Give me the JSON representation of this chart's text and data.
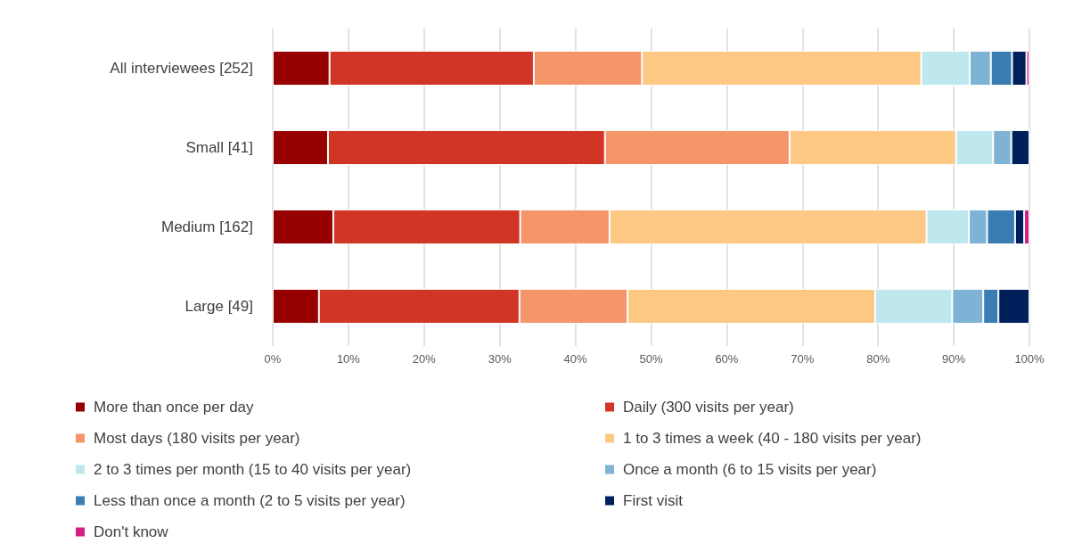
{
  "chart_data": {
    "type": "bar",
    "orientation": "horizontal",
    "stacked": true,
    "categories": [
      "All interviewees [252]",
      "Small [41]",
      "Medium [162]",
      "Large [49]"
    ],
    "series": [
      {
        "name": "More than once per day",
        "color": "#960000",
        "values": [
          7.5,
          7.3,
          8.0,
          6.1
        ]
      },
      {
        "name": "Daily (300 visits per year)",
        "color": "#d03525",
        "values": [
          27.0,
          36.6,
          24.7,
          26.5
        ]
      },
      {
        "name": "Most days (180 visits per year)",
        "color": "#f4956a",
        "values": [
          14.3,
          24.4,
          11.8,
          14.3
        ]
      },
      {
        "name": "1 to 3 times a week (40 - 180 visits per year)",
        "color": "#fdc883",
        "values": [
          36.9,
          22.0,
          41.9,
          32.7
        ]
      },
      {
        "name": "2 to 3 times per month (15 to 40 visits per year)",
        "color": "#bfe8ee",
        "values": [
          6.4,
          4.9,
          5.6,
          10.2
        ]
      },
      {
        "name": "Once a month (6 to 15 visits per year)",
        "color": "#7fb3d5",
        "values": [
          2.8,
          2.4,
          2.4,
          4.1
        ]
      },
      {
        "name": "Less than once a month (2 to 5 visits per year)",
        "color": "#3a7db3",
        "values": [
          2.8,
          null,
          3.7,
          2.0
        ]
      },
      {
        "name": "First visit",
        "color": "#00205b",
        "values": [
          1.9,
          2.4,
          1.2,
          4.1
        ]
      },
      {
        "name": "Don't know",
        "color": "#d11f86",
        "values": [
          0.4,
          null,
          0.7,
          null
        ]
      }
    ],
    "xlim": [
      0,
      100
    ],
    "xticks": [
      {
        "value": 0,
        "label": "0%"
      },
      {
        "value": 10,
        "label": "10%"
      },
      {
        "value": 20,
        "label": "20%"
      },
      {
        "value": 30,
        "label": "30%"
      },
      {
        "value": 40,
        "label": "40%"
      },
      {
        "value": 50,
        "label": "50%"
      },
      {
        "value": 60,
        "label": "60%"
      },
      {
        "value": 70,
        "label": "70%"
      },
      {
        "value": 80,
        "label": "80%"
      },
      {
        "value": 90,
        "label": "90%"
      },
      {
        "value": 100,
        "label": "100%"
      }
    ],
    "grid": "x",
    "legend": "bottom"
  }
}
